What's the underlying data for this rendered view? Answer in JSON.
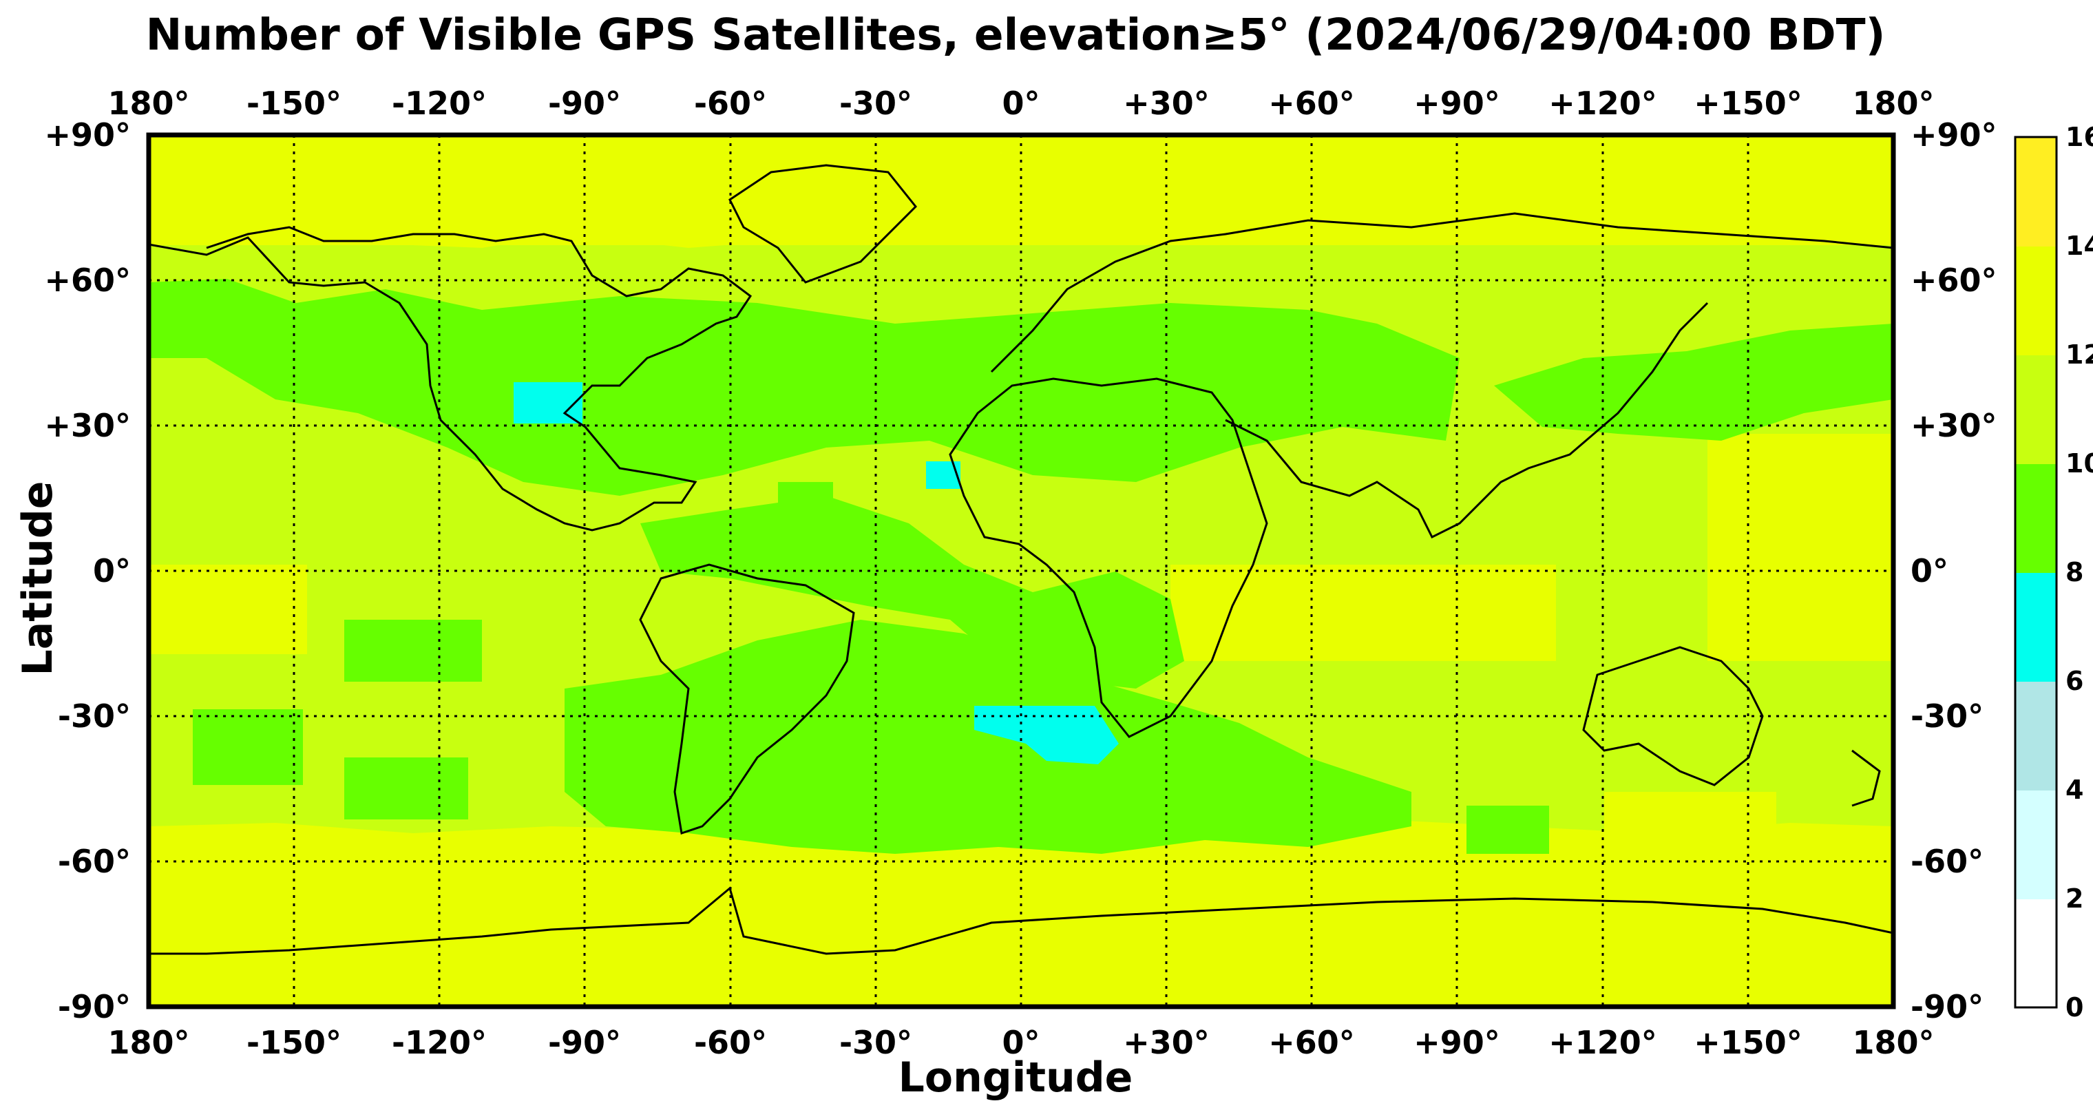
{
  "map": {
    "title": "Number of Visible GPS Satellites, elevation≥5° (2024/06/29/04:00 BDT)",
    "xlabel": "Longitude",
    "ylabel": "Latitude",
    "lon_ticks": [
      "180°",
      "-150°",
      "-120°",
      "-90°",
      "-60°",
      "-30°",
      "0°",
      "+30°",
      "+60°",
      "+90°",
      "+120°",
      "+150°",
      "180°"
    ],
    "lat_ticks": [
      "+90°",
      "+60°",
      "+30°",
      "0°",
      "-30°",
      "-60°",
      "-90°"
    ],
    "lon_range": [
      -180,
      180
    ],
    "lat_range": [
      -90,
      90
    ],
    "grid": "dotted every 30°",
    "colors": {
      "c12_14": "#e8ff00",
      "c10_12": "#c8ff10",
      "c8_10": "#66ff00",
      "c6_8": "#00ffee",
      "coast": "#000000"
    }
  },
  "colorbar": {
    "ticks": [
      "0",
      "2",
      "4",
      "6",
      "8",
      "10",
      "12",
      "14",
      "16"
    ],
    "bins": [
      {
        "from": 0,
        "to": 2,
        "color": "#ffffff"
      },
      {
        "from": 2,
        "to": 4,
        "color": "#d4ffff"
      },
      {
        "from": 4,
        "to": 6,
        "color": "#b0e6e6"
      },
      {
        "from": 6,
        "to": 8,
        "color": "#00ffee"
      },
      {
        "from": 8,
        "to": 10,
        "color": "#66ff00"
      },
      {
        "from": 10,
        "to": 12,
        "color": "#c8ff10"
      },
      {
        "from": 12,
        "to": 14,
        "color": "#e8ff00"
      },
      {
        "from": 14,
        "to": 16,
        "color": "#ffee22"
      }
    ]
  }
}
